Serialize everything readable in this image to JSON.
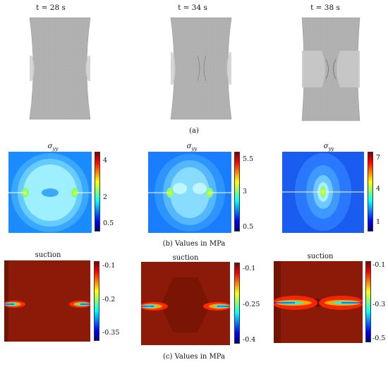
{
  "row_a": {
    "titles": [
      "t = 28 s",
      "t = 34 s",
      "t = 38 s"
    ],
    "caption": "(a)"
  },
  "row_b": {
    "caption": "(b) Values in MPa",
    "symbol": "σyy",
    "colorbars": [
      {
        "ticks": [
          "4",
          "2",
          "0.5"
        ]
      },
      {
        "ticks": [
          "5.5",
          "3",
          "0.5"
        ]
      },
      {
        "ticks": [
          "7",
          "4",
          "1"
        ]
      }
    ]
  },
  "row_c": {
    "caption": "(c) Values in MPa",
    "label": "suction",
    "colorbars": [
      {
        "ticks": [
          "-0.1",
          "-0.2",
          "-0.35"
        ]
      },
      {
        "ticks": [
          "-0.1",
          "-0.25",
          "-0.4"
        ]
      },
      {
        "ticks": [
          "-0.1",
          "-0.3",
          "-0.5"
        ]
      }
    ]
  },
  "colors": {
    "jet": [
      "#00007f",
      "#0000ff",
      "#007fff",
      "#00ffff",
      "#7fff7f",
      "#ffff00",
      "#ff7f00",
      "#ff0000",
      "#7f0000"
    ],
    "mesh": "#a8a8a8",
    "suction_bg": "#8c1a08"
  }
}
